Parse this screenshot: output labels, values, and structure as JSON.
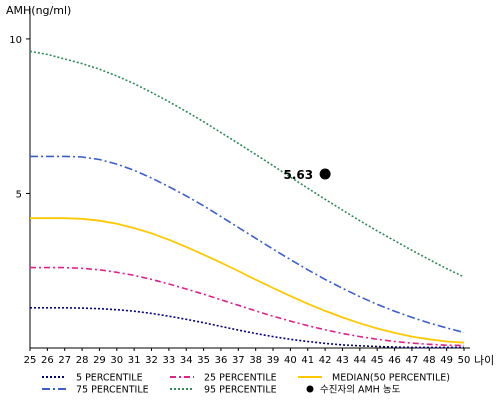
{
  "chart_data": {
    "type": "line",
    "ylabel": "AMH(ng/ml)",
    "xlabel": "나이",
    "x": [
      25,
      26,
      27,
      28,
      29,
      30,
      31,
      32,
      33,
      34,
      35,
      36,
      37,
      38,
      39,
      40,
      41,
      42,
      43,
      44,
      45,
      46,
      47,
      48,
      49,
      50
    ],
    "xticks": [
      "25",
      "26",
      "27",
      "28",
      "29",
      "30",
      "31",
      "32",
      "33",
      "34",
      "35",
      "36",
      "37",
      "38",
      "39",
      "40",
      "41",
      "42",
      "43",
      "44",
      "45",
      "46",
      "47",
      "48",
      "49",
      "50"
    ],
    "yticks": [
      5,
      10
    ],
    "ylim": [
      0,
      11
    ],
    "grid": false,
    "legend_position": "bottom",
    "series": [
      {
        "name": "5 PERCENTILE",
        "color": "#000080",
        "dash": "2,2",
        "values": [
          1.3,
          1.3,
          1.3,
          1.29,
          1.27,
          1.24,
          1.19,
          1.12,
          1.03,
          0.93,
          0.82,
          0.7,
          0.58,
          0.47,
          0.37,
          0.28,
          0.21,
          0.15,
          0.1,
          0.07,
          0.05,
          0.03,
          0.02,
          0.02,
          0.02,
          0.02
        ]
      },
      {
        "name": "25 PERCENTILE",
        "color": "#e0218a",
        "dash": "6,3,2,3",
        "values": [
          2.6,
          2.6,
          2.6,
          2.58,
          2.53,
          2.45,
          2.35,
          2.22,
          2.07,
          1.91,
          1.74,
          1.56,
          1.38,
          1.2,
          1.03,
          0.87,
          0.72,
          0.59,
          0.47,
          0.37,
          0.28,
          0.21,
          0.16,
          0.12,
          0.09,
          0.08
        ]
      },
      {
        "name": "75 PERCENTILE",
        "color": "#3a5fcd",
        "dash": "8,3,2,3",
        "values": [
          6.2,
          6.2,
          6.2,
          6.18,
          6.1,
          5.95,
          5.75,
          5.5,
          5.22,
          4.92,
          4.6,
          4.25,
          3.9,
          3.55,
          3.2,
          2.86,
          2.53,
          2.22,
          1.93,
          1.66,
          1.41,
          1.19,
          0.99,
          0.81,
          0.65,
          0.5
        ]
      },
      {
        "name": "95 PERCENTILE",
        "color": "#2e8b57",
        "dash": "2,2",
        "values": [
          9.6,
          9.5,
          9.35,
          9.2,
          9.02,
          8.8,
          8.55,
          8.27,
          7.97,
          7.65,
          7.32,
          6.97,
          6.62,
          6.26,
          5.9,
          5.53,
          5.17,
          4.81,
          4.46,
          4.12,
          3.79,
          3.47,
          3.16,
          2.86,
          2.57,
          2.3
        ]
      },
      {
        "name": "MEDIAN(50 PERCENTILE)",
        "color": "#ffc800",
        "dash": "",
        "values": [
          4.2,
          4.2,
          4.2,
          4.18,
          4.12,
          4.02,
          3.88,
          3.71,
          3.5,
          3.27,
          3.02,
          2.76,
          2.49,
          2.21,
          1.94,
          1.68,
          1.43,
          1.2,
          0.99,
          0.8,
          0.63,
          0.49,
          0.37,
          0.28,
          0.21,
          0.17
        ]
      }
    ],
    "points": [
      {
        "name": "수진자의 AMH 농도",
        "x": 42,
        "y": 5.63,
        "label": "5.63",
        "color": "#000000"
      }
    ]
  }
}
